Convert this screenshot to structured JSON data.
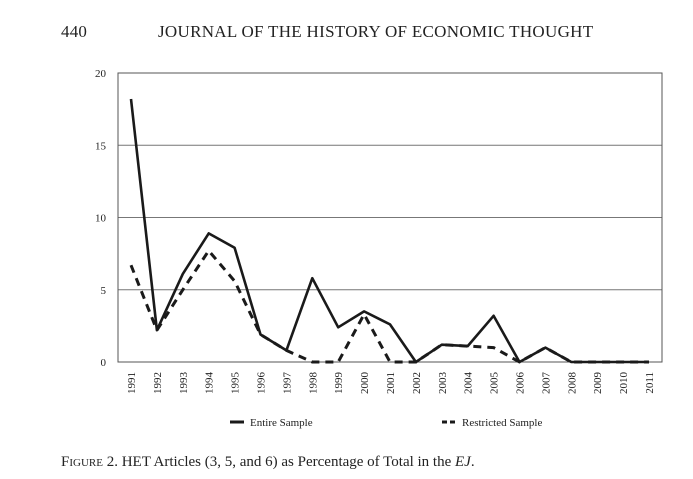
{
  "header": {
    "page_number": "440",
    "running_title": "JOURNAL OF THE HISTORY OF ECONOMIC THOUGHT"
  },
  "caption": {
    "label": "Figure 2.",
    "text": " HET Articles (3, 5, and 6) as Percentage of Total in the ",
    "journal": "EJ",
    "end": "."
  },
  "chart_data": {
    "type": "line",
    "title": "",
    "xlabel": "",
    "ylabel": "",
    "ylim": [
      0,
      20
    ],
    "yticks": [
      0,
      5,
      10,
      15,
      20
    ],
    "grid": "horizontal",
    "legend_position": "bottom",
    "x": [
      "1991",
      "1992",
      "1993",
      "1994",
      "1995",
      "1996",
      "1997",
      "1998",
      "1999",
      "2000",
      "2001",
      "2002",
      "2003",
      "2004",
      "2005",
      "2006",
      "2007",
      "2008",
      "2009",
      "2010",
      "2011"
    ],
    "series": [
      {
        "name": "Entire Sample",
        "style": "solid",
        "color": "#1a1a1a",
        "values": [
          18.2,
          2.2,
          6.1,
          8.9,
          7.9,
          1.9,
          0.8,
          5.8,
          2.4,
          3.5,
          2.6,
          0.0,
          1.2,
          1.1,
          3.2,
          0.0,
          1.0,
          0.0,
          0.0,
          0.0,
          0.0
        ]
      },
      {
        "name": "Restricted Sample",
        "style": "dashed",
        "color": "#1a1a1a",
        "values": [
          6.7,
          2.2,
          5.0,
          7.7,
          5.6,
          1.9,
          0.8,
          0.0,
          0.0,
          3.3,
          0.0,
          0.0,
          1.2,
          1.1,
          1.0,
          0.0,
          1.0,
          0.0,
          0.0,
          0.0,
          0.0
        ]
      }
    ]
  }
}
